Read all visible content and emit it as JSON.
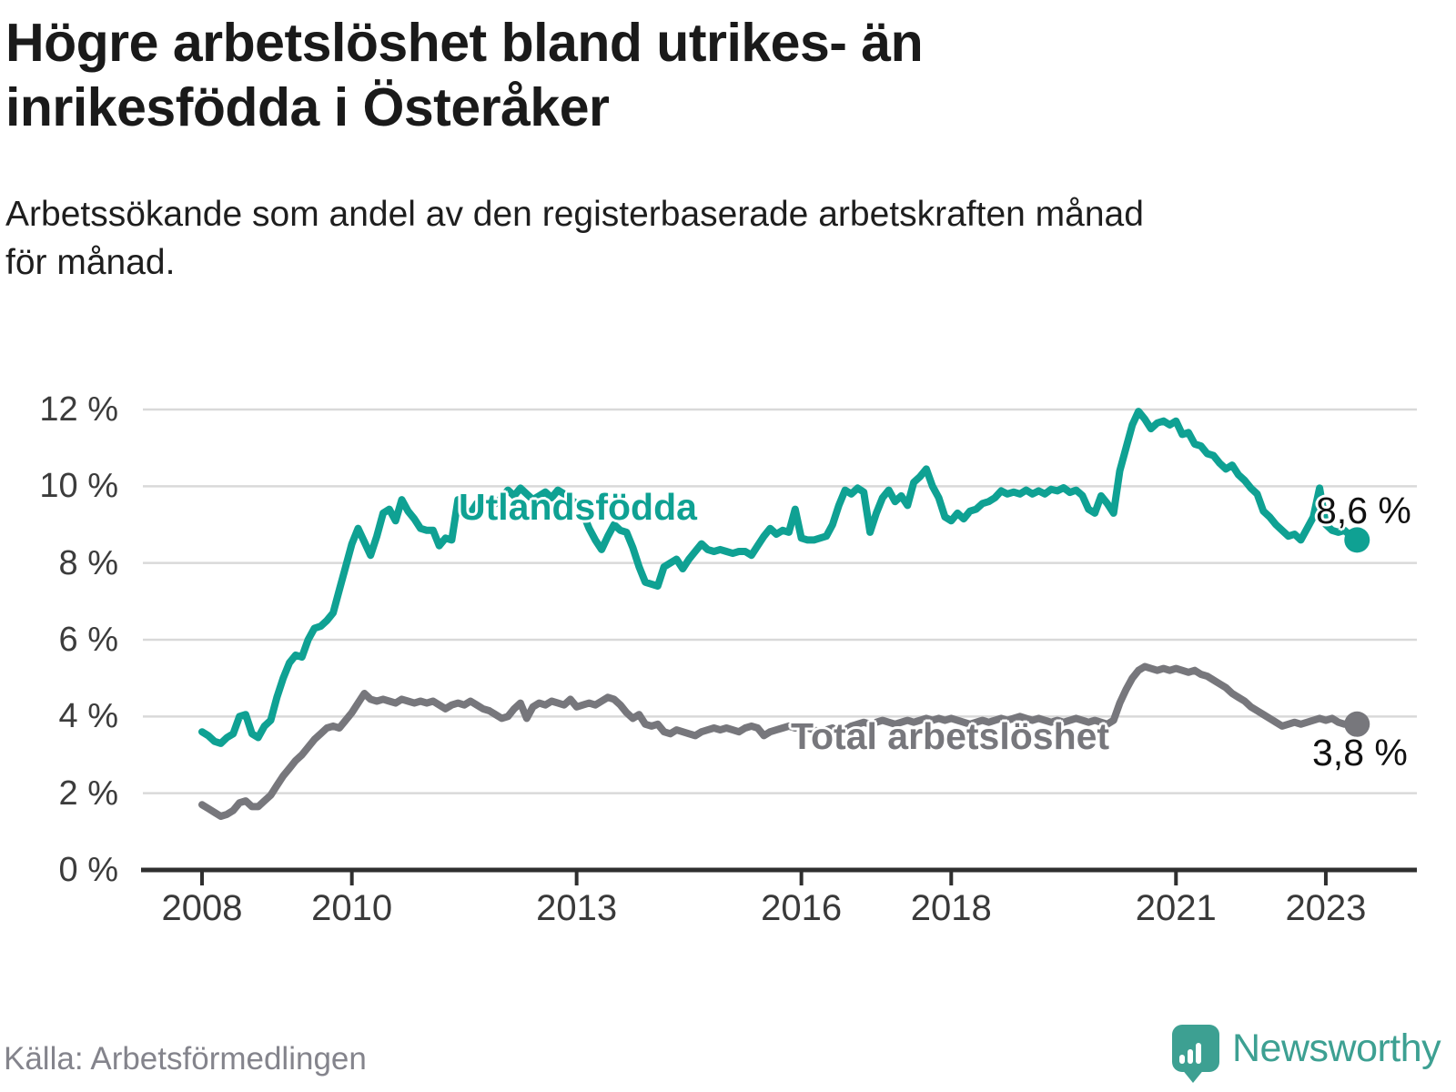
{
  "header": {
    "title_line1": "Högre arbetslöshet bland utrikes- än",
    "title_line2": "inrikesfödda i Österåker",
    "subtitle_line1": "Arbetssökande som andel av den registerbaserade arbetskraften månad",
    "subtitle_line2": "för månad."
  },
  "footer": {
    "source": "Källa: Arbetsförmedlingen",
    "brand_name": "Newsworthy"
  },
  "colors": {
    "foreign_line": "#0fa193",
    "total_line": "#77777c",
    "grid": "#d9d9d9",
    "axis": "#2f2f2f",
    "value_text": "#111111",
    "brand_teal": "#3da092"
  },
  "chart_data": {
    "type": "line",
    "title": "Högre arbetslöshet bland utrikes- än inrikesfödda i Österåker",
    "subtitle": "Arbetssökande som andel av den registerbaserade arbetskraften månad för månad.",
    "frequency": "monthly",
    "x_start_year": 2008,
    "x_start_month": 1,
    "x_tick_years": [
      "2008",
      "2010",
      "2013",
      "2016",
      "2018",
      "2021",
      "2023"
    ],
    "y_tick_labels": [
      "0 %",
      "2 %",
      "4 %",
      "6 %",
      "8 %",
      "10 %",
      "12 %"
    ],
    "y_tick_values": [
      0,
      2,
      4,
      6,
      8,
      10,
      12
    ],
    "ylim": [
      0,
      12.6
    ],
    "grid": "horizontal",
    "legend_position": "inline-labels",
    "series": [
      {
        "name": "Utlandsfödda",
        "end_label": "8,6 %",
        "end_value": 8.6,
        "color": "#0fa193",
        "values": [
          3.6,
          3.5,
          3.35,
          3.3,
          3.45,
          3.55,
          4.0,
          4.05,
          3.55,
          3.45,
          3.75,
          3.9,
          4.5,
          5.0,
          5.4,
          5.6,
          5.55,
          6.0,
          6.3,
          6.35,
          6.5,
          6.7,
          7.3,
          7.9,
          8.5,
          8.9,
          8.55,
          8.2,
          8.7,
          9.3,
          9.4,
          9.1,
          9.65,
          9.35,
          9.15,
          8.9,
          8.85,
          8.85,
          8.45,
          8.65,
          8.6,
          9.65,
          9.4,
          9.3,
          9.55,
          9.45,
          9.6,
          9.55,
          9.7,
          9.9,
          9.75,
          9.95,
          9.8,
          9.65,
          9.75,
          9.85,
          9.7,
          9.9,
          9.8,
          9.65,
          9.55,
          9.3,
          8.9,
          8.6,
          8.35,
          8.7,
          9.0,
          8.85,
          8.8,
          8.4,
          7.9,
          7.5,
          7.45,
          7.4,
          7.9,
          8.0,
          8.1,
          7.85,
          8.1,
          8.3,
          8.5,
          8.35,
          8.3,
          8.35,
          8.3,
          8.25,
          8.3,
          8.3,
          8.2,
          8.45,
          8.7,
          8.9,
          8.75,
          8.85,
          8.8,
          9.4,
          8.65,
          8.6,
          8.6,
          8.65,
          8.7,
          9.0,
          9.5,
          9.9,
          9.8,
          9.95,
          9.85,
          8.8,
          9.3,
          9.7,
          9.9,
          9.6,
          9.75,
          9.5,
          10.1,
          10.25,
          10.45,
          10.0,
          9.7,
          9.2,
          9.1,
          9.3,
          9.15,
          9.35,
          9.4,
          9.55,
          9.6,
          9.7,
          9.88,
          9.8,
          9.85,
          9.8,
          9.9,
          9.8,
          9.88,
          9.8,
          9.92,
          9.88,
          9.96,
          9.84,
          9.9,
          9.76,
          9.4,
          9.3,
          9.75,
          9.55,
          9.3,
          10.4,
          11.0,
          11.6,
          11.95,
          11.75,
          11.5,
          11.65,
          11.7,
          11.6,
          11.7,
          11.35,
          11.4,
          11.1,
          11.05,
          10.85,
          10.8,
          10.6,
          10.45,
          10.55,
          10.3,
          10.15,
          9.95,
          9.8,
          9.35,
          9.2,
          9.0,
          8.85,
          8.7,
          8.75,
          8.6,
          8.9,
          9.2,
          9.95,
          9.0,
          8.85,
          8.8,
          8.85,
          8.7,
          8.6
        ]
      },
      {
        "name": "Total arbetslöshet",
        "end_label": "3,8 %",
        "end_value": 3.8,
        "color": "#77777c",
        "values": [
          1.7,
          1.6,
          1.5,
          1.4,
          1.45,
          1.55,
          1.75,
          1.8,
          1.65,
          1.65,
          1.8,
          1.95,
          2.2,
          2.45,
          2.65,
          2.85,
          3.0,
          3.2,
          3.4,
          3.55,
          3.7,
          3.75,
          3.7,
          3.9,
          4.1,
          4.35,
          4.6,
          4.45,
          4.4,
          4.45,
          4.4,
          4.35,
          4.45,
          4.4,
          4.35,
          4.4,
          4.35,
          4.4,
          4.3,
          4.2,
          4.3,
          4.35,
          4.3,
          4.4,
          4.3,
          4.2,
          4.15,
          4.05,
          3.95,
          4.0,
          4.2,
          4.35,
          3.95,
          4.25,
          4.35,
          4.3,
          4.4,
          4.35,
          4.3,
          4.45,
          4.25,
          4.3,
          4.35,
          4.3,
          4.4,
          4.5,
          4.45,
          4.3,
          4.1,
          3.95,
          4.05,
          3.8,
          3.75,
          3.8,
          3.6,
          3.55,
          3.65,
          3.6,
          3.55,
          3.5,
          3.6,
          3.65,
          3.7,
          3.65,
          3.7,
          3.65,
          3.6,
          3.7,
          3.75,
          3.7,
          3.5,
          3.6,
          3.65,
          3.7,
          3.75,
          3.7,
          3.75,
          3.7,
          3.65,
          3.6,
          3.65,
          3.7,
          3.6,
          3.65,
          3.75,
          3.8,
          3.85,
          3.8,
          3.85,
          3.9,
          3.85,
          3.8,
          3.85,
          3.9,
          3.85,
          3.9,
          3.95,
          3.9,
          3.95,
          3.9,
          3.95,
          3.9,
          3.85,
          3.8,
          3.85,
          3.9,
          3.85,
          3.9,
          3.95,
          3.9,
          3.95,
          4.0,
          3.95,
          3.9,
          3.95,
          3.9,
          3.85,
          3.9,
          3.85,
          3.9,
          3.95,
          3.9,
          3.85,
          3.9,
          3.85,
          3.8,
          3.9,
          4.35,
          4.7,
          5.0,
          5.2,
          5.3,
          5.25,
          5.2,
          5.25,
          5.2,
          5.25,
          5.2,
          5.15,
          5.2,
          5.1,
          5.05,
          4.95,
          4.85,
          4.75,
          4.6,
          4.5,
          4.4,
          4.25,
          4.15,
          4.05,
          3.95,
          3.85,
          3.75,
          3.8,
          3.85,
          3.8,
          3.85,
          3.9,
          3.95,
          3.9,
          3.95,
          3.85,
          3.8,
          3.85,
          3.8
        ]
      }
    ]
  }
}
